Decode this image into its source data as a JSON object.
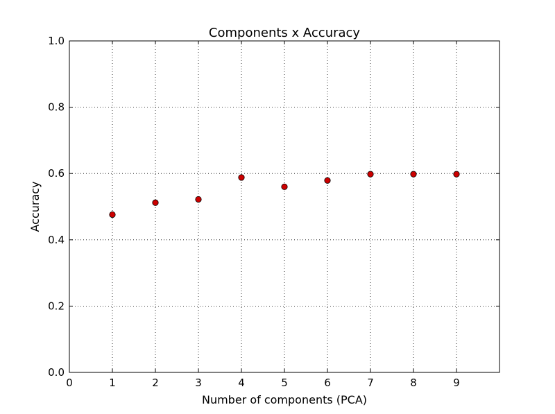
{
  "chart_data": {
    "type": "scatter",
    "title": "Components x Accuracy",
    "xlabel": "Number of components (PCA)",
    "ylabel": "Accuracy",
    "xlim": [
      0,
      10
    ],
    "ylim": [
      0,
      1
    ],
    "xticks": [
      "0",
      "1",
      "2",
      "3",
      "4",
      "5",
      "6",
      "7",
      "8",
      "9"
    ],
    "xtick_values": [
      0,
      1,
      2,
      3,
      4,
      5,
      6,
      7,
      8,
      9
    ],
    "yticks": [
      "0.0",
      "0.2",
      "0.4",
      "0.6",
      "0.8",
      "1.0"
    ],
    "ytick_values": [
      0,
      0.2,
      0.4,
      0.6,
      0.8,
      1.0
    ],
    "grid": true,
    "marker_color": "#cc0000",
    "series": [
      {
        "x": [
          1,
          2,
          3,
          4,
          5,
          6,
          7,
          8,
          9
        ],
        "y": [
          0.476,
          0.512,
          0.522,
          0.588,
          0.56,
          0.579,
          0.598,
          0.598,
          0.598
        ]
      }
    ]
  }
}
